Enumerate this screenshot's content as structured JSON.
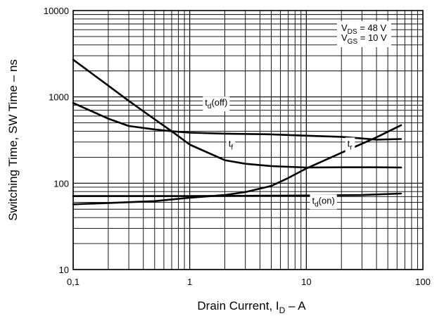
{
  "chart_data": {
    "type": "line",
    "x_scale": "log",
    "y_scale": "log",
    "xlim": [
      0.1,
      100
    ],
    "ylim": [
      10,
      10000
    ],
    "grid": true,
    "xlabel": {
      "main": "Drain Current, I",
      "sub": "D",
      "tail": " – A"
    },
    "ylabel": "Switching Time, SW Time – ns",
    "x_ticks": [
      {
        "value": 0.1,
        "label": "0,1"
      },
      {
        "value": 1,
        "label": "1"
      },
      {
        "value": 10,
        "label": "10"
      },
      {
        "value": 100,
        "label": "100"
      }
    ],
    "y_ticks": [
      {
        "value": 10,
        "label": "10"
      },
      {
        "value": 100,
        "label": "100"
      },
      {
        "value": 1000,
        "label": "1000"
      },
      {
        "value": 10000,
        "label": "10000"
      }
    ],
    "conditions": [
      {
        "main": "V",
        "sub": "DS",
        "tail": " = 48 V"
      },
      {
        "main": "V",
        "sub": "GS",
        "tail": " = 10 V"
      }
    ],
    "series": [
      {
        "id": "td_off",
        "label": {
          "main": "t",
          "sub": "d",
          "tail": "(off)"
        },
        "label_at": {
          "x": 1.35,
          "y": 790
        },
        "x": [
          0.1,
          0.2,
          0.3,
          0.5,
          0.7,
          1,
          2,
          5,
          10,
          20,
          40,
          65
        ],
        "y": [
          850,
          560,
          460,
          420,
          400,
          385,
          375,
          368,
          355,
          345,
          320,
          325
        ]
      },
      {
        "id": "tf",
        "label": {
          "main": "t",
          "sub": "f",
          "tail": ""
        },
        "label_at": {
          "x": 2.15,
          "y": 265
        },
        "x": [
          0.1,
          0.2,
          0.3,
          0.5,
          0.7,
          1,
          2,
          3,
          5,
          7,
          10,
          20,
          40,
          65
        ],
        "y": [
          2700,
          1350,
          900,
          550,
          400,
          280,
          185,
          168,
          158,
          155,
          152,
          153,
          153,
          152
        ]
      },
      {
        "id": "tr",
        "label": {
          "main": "t",
          "sub": "r",
          "tail": ""
        },
        "label_at": {
          "x": 22.5,
          "y": 265
        },
        "x": [
          0.1,
          0.2,
          0.5,
          1,
          2,
          3,
          5,
          7,
          10,
          20,
          40,
          65
        ],
        "y": [
          57,
          59,
          62,
          68,
          73,
          79,
          93,
          115,
          148,
          225,
          340,
          470
        ]
      },
      {
        "id": "td_on",
        "label": {
          "main": "t",
          "sub": "d",
          "tail": "(on)"
        },
        "label_at": {
          "x": 11.2,
          "y": 58
        },
        "x": [
          0.1,
          1,
          10,
          30,
          65
        ],
        "y": [
          71,
          71,
          72,
          73,
          76
        ]
      }
    ]
  }
}
